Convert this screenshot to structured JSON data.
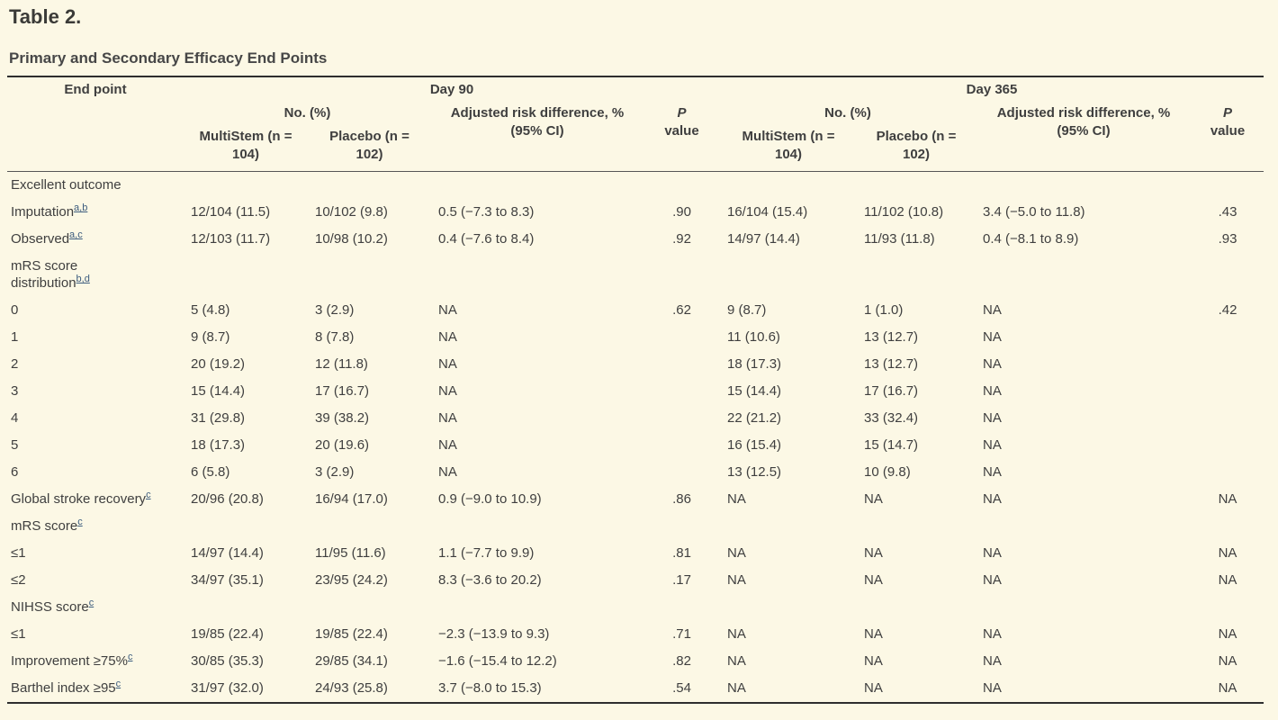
{
  "colors": {
    "background": "#fcf8e5",
    "text": "#3f3f3f",
    "heading": "#3b3b38",
    "table_border": "#2e2e2e",
    "header_rule": "#565656",
    "footnote_link": "#3c5c7e"
  },
  "table": {
    "title": "Table 2.",
    "caption": "Primary and Secondary Efficacy End Points",
    "header": {
      "endpoint": "End point",
      "day90": "Day 90",
      "day365": "Day 365",
      "no_pct": "No. (%)",
      "risk_diff": "Adjusted risk difference, %\n(95% CI)",
      "p_line1": "P",
      "p_line2": "value",
      "multistem": "MultiStem (n =\n104)",
      "placebo": "Placebo (n =\n102)"
    },
    "rows": [
      {
        "label": "Excellent outcome",
        "sup": "",
        "cells": [
          "",
          "",
          "",
          "",
          "",
          "",
          "",
          ""
        ]
      },
      {
        "label": "Imputation",
        "sup": "a,b",
        "cells": [
          "12/104 (11.5)",
          "10/102 (9.8)",
          "0.5 (−7.3 to 8.3)",
          ".90",
          "16/104 (15.4)",
          "11/102 (10.8)",
          "3.4 (−5.0 to 11.8)",
          ".43"
        ]
      },
      {
        "label": "Observed",
        "sup": "a,c",
        "cells": [
          "12/103 (11.7)",
          "10/98 (10.2)",
          "0.4 (−7.6 to 8.4)",
          ".92",
          "14/97 (14.4)",
          "11/93 (11.8)",
          "0.4 (−8.1 to 8.9)",
          ".93"
        ]
      },
      {
        "label": "mRS score\ndistribution",
        "sup": "b,d",
        "cells": [
          "",
          "",
          "",
          "",
          "",
          "",
          "",
          ""
        ]
      },
      {
        "label": "0",
        "sup": "",
        "cells": [
          "5 (4.8)",
          "3 (2.9)",
          "NA",
          ".62",
          "9 (8.7)",
          "1 (1.0)",
          "NA",
          ".42"
        ]
      },
      {
        "label": "1",
        "sup": "",
        "cells": [
          "9 (8.7)",
          "8 (7.8)",
          "NA",
          "",
          "11 (10.6)",
          "13 (12.7)",
          "NA",
          ""
        ]
      },
      {
        "label": "2",
        "sup": "",
        "cells": [
          "20 (19.2)",
          "12 (11.8)",
          "NA",
          "",
          "18 (17.3)",
          "13 (12.7)",
          "NA",
          ""
        ]
      },
      {
        "label": "3",
        "sup": "",
        "cells": [
          "15 (14.4)",
          "17 (16.7)",
          "NA",
          "",
          "15 (14.4)",
          "17 (16.7)",
          "NA",
          ""
        ]
      },
      {
        "label": "4",
        "sup": "",
        "cells": [
          "31 (29.8)",
          "39 (38.2)",
          "NA",
          "",
          "22 (21.2)",
          "33 (32.4)",
          "NA",
          ""
        ]
      },
      {
        "label": "5",
        "sup": "",
        "cells": [
          "18 (17.3)",
          "20 (19.6)",
          "NA",
          "",
          "16 (15.4)",
          "15 (14.7)",
          "NA",
          ""
        ]
      },
      {
        "label": "6",
        "sup": "",
        "cells": [
          "6 (5.8)",
          "3 (2.9)",
          "NA",
          "",
          "13 (12.5)",
          "10 (9.8)",
          "NA",
          ""
        ]
      },
      {
        "label": "Global stroke recovery",
        "sup": "c",
        "cells": [
          "20/96 (20.8)",
          "16/94 (17.0)",
          "0.9 (−9.0 to 10.9)",
          ".86",
          "NA",
          "NA",
          "NA",
          "NA"
        ]
      },
      {
        "label": "mRS score",
        "sup": "c",
        "cells": [
          "",
          "",
          "",
          "",
          "",
          "",
          "",
          ""
        ]
      },
      {
        "label": "≤1",
        "sup": "",
        "cells": [
          "14/97 (14.4)",
          "11/95 (11.6)",
          "1.1 (−7.7 to 9.9)",
          ".81",
          "NA",
          "NA",
          "NA",
          "NA"
        ]
      },
      {
        "label": "≤2",
        "sup": "",
        "cells": [
          "34/97 (35.1)",
          "23/95 (24.2)",
          "8.3 (−3.6 to 20.2)",
          ".17",
          "NA",
          "NA",
          "NA",
          "NA"
        ]
      },
      {
        "label": "NIHSS score",
        "sup": "c",
        "cells": [
          "",
          "",
          "",
          "",
          "",
          "",
          "",
          ""
        ]
      },
      {
        "label": "≤1",
        "sup": "",
        "cells": [
          "19/85 (22.4)",
          "19/85 (22.4)",
          "−2.3 (−13.9 to 9.3)",
          ".71",
          "NA",
          "NA",
          "NA",
          "NA"
        ]
      },
      {
        "label": "Improvement ≥75%",
        "sup": "c",
        "cells": [
          "30/85 (35.3)",
          "29/85 (34.1)",
          "−1.6 (−15.4 to 12.2)",
          ".82",
          "NA",
          "NA",
          "NA",
          "NA"
        ]
      },
      {
        "label": "Barthel index ≥95",
        "sup": "c",
        "cells": [
          "31/97 (32.0)",
          "24/93 (25.8)",
          "3.7 (−8.0 to 15.3)",
          ".54",
          "NA",
          "NA",
          "NA",
          "NA"
        ]
      }
    ]
  }
}
